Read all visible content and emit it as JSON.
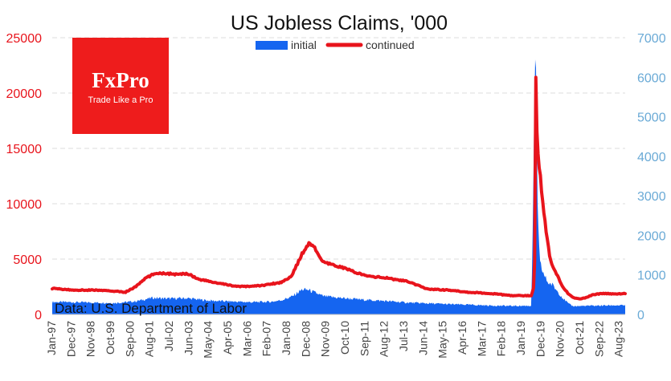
{
  "chart_data": {
    "type": "area",
    "title": "US Jobless Claims, '000",
    "legend": {
      "position": "top-center",
      "items": [
        "initial",
        "continued"
      ]
    },
    "x_tick_labels": [
      "Jan-97",
      "Dec-97",
      "Nov-98",
      "Oct-99",
      "Sep-00",
      "Aug-01",
      "Jul-02",
      "Jun-03",
      "May-04",
      "Apr-05",
      "Mar-06",
      "Feb-07",
      "Jan-08",
      "Dec-08",
      "Nov-09",
      "Oct-10",
      "Sep-11",
      "Aug-12",
      "Jul-13",
      "Jun-14",
      "May-15",
      "Apr-16",
      "Mar-17",
      "Feb-18",
      "Jan-19",
      "Dec-19",
      "Nov-20",
      "Oct-21",
      "Sep-22",
      "Aug-23"
    ],
    "y_left": {
      "label": "",
      "ylim": [
        0,
        25000
      ],
      "ticks": [
        "0",
        "5000",
        "10000",
        "15000",
        "20000",
        "25000"
      ],
      "side": "left"
    },
    "y_right": {
      "label": "",
      "ylim": [
        0,
        7000
      ],
      "ticks": [
        "0",
        "1000",
        "2000",
        "3000",
        "4000",
        "5000",
        "6000",
        "7000"
      ],
      "side": "right"
    },
    "grid": true,
    "series": [
      {
        "name": "initial",
        "kind": "area",
        "axis": "right",
        "color": "#1565f0",
        "x": [
          1997.0,
          1998.0,
          1999.0,
          2000.0,
          2001.0,
          2001.8,
          2002.5,
          2003.5,
          2004.5,
          2005.5,
          2006.5,
          2007.5,
          2008.0,
          2008.5,
          2009.0,
          2009.3,
          2010.0,
          2011.0,
          2012.0,
          2013.0,
          2014.0,
          2015.0,
          2016.0,
          2017.0,
          2018.0,
          2019.0,
          2020.0,
          2020.2,
          2020.25,
          2020.3,
          2020.4,
          2020.6,
          2020.8,
          2021.0,
          2021.5,
          2021.8,
          2022.0,
          2023.0,
          2024.0,
          2024.5
        ],
        "y": [
          315,
          310,
          300,
          290,
          330,
          420,
          400,
          410,
          350,
          330,
          310,
          320,
          360,
          450,
          630,
          620,
          460,
          410,
          370,
          340,
          300,
          280,
          260,
          245,
          225,
          215,
          220,
          6800,
          5200,
          2500,
          1300,
          1000,
          800,
          750,
          420,
          260,
          210,
          220,
          230,
          230
        ]
      },
      {
        "name": "continued",
        "kind": "line",
        "axis": "left",
        "color": "#e8141c",
        "x": [
          1997.0,
          1998.0,
          1999.0,
          2000.0,
          2000.5,
          2001.0,
          2001.5,
          2002.0,
          2002.5,
          2003.0,
          2003.5,
          2004.0,
          2005.0,
          2006.0,
          2007.0,
          2008.0,
          2008.5,
          2009.0,
          2009.3,
          2009.5,
          2010.0,
          2011.0,
          2012.0,
          2013.0,
          2014.0,
          2015.0,
          2016.0,
          2017.0,
          2018.0,
          2019.0,
          2020.0,
          2020.15,
          2020.2,
          2020.25,
          2020.3,
          2020.5,
          2020.7,
          2020.9,
          2021.0,
          2021.3,
          2021.5,
          2021.8,
          2022.0,
          2022.3,
          2022.5,
          2023.0,
          2023.5,
          2024.0,
          2024.5
        ],
        "y": [
          2350,
          2200,
          2200,
          2100,
          2000,
          2500,
          3300,
          3750,
          3700,
          3600,
          3700,
          3200,
          2800,
          2500,
          2600,
          2900,
          3500,
          5500,
          6400,
          6300,
          4700,
          4200,
          3500,
          3300,
          3000,
          2300,
          2200,
          2000,
          1900,
          1700,
          1700,
          2800,
          23000,
          17000,
          15000,
          11000,
          7500,
          5000,
          4500,
          3300,
          2500,
          1800,
          1500,
          1400,
          1450,
          1800,
          1900,
          1850,
          1900
        ]
      }
    ],
    "annotation": "Data: U.S. Department of Labor"
  },
  "logo": {
    "name": "FxPro",
    "tagline": "Trade Like a Pro",
    "color": "#ee1c1c"
  },
  "colors": {
    "left_axis": "#e8141c",
    "right_axis": "#6aaad6",
    "grid": "#dcdcdc"
  }
}
